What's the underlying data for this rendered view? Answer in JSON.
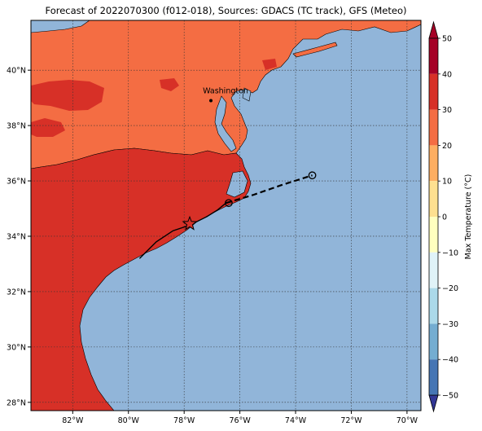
{
  "title": "Forecast of 2022070300 (f012-018), Sources: GDACS (TC track), GFS (Meteo)",
  "map": {
    "lon_range": [
      -83.5,
      -69.5
    ],
    "lat_range": [
      27.7,
      41.8
    ],
    "lon_ticks": [
      {
        "value": -82,
        "label": "82°W"
      },
      {
        "value": -80,
        "label": "80°W"
      },
      {
        "value": -78,
        "label": "78°W"
      },
      {
        "value": -76,
        "label": "76°W"
      },
      {
        "value": -74,
        "label": "74°W"
      },
      {
        "value": -72,
        "label": "72°W"
      },
      {
        "value": -70,
        "label": "70°W"
      }
    ],
    "lat_ticks": [
      {
        "value": 28,
        "label": "28°N"
      },
      {
        "value": 30,
        "label": "30°N"
      },
      {
        "value": 32,
        "label": "32°N"
      },
      {
        "value": 34,
        "label": "34°N"
      },
      {
        "value": 36,
        "label": "36°N"
      },
      {
        "value": 38,
        "label": "38°N"
      },
      {
        "value": 40,
        "label": "40°N"
      }
    ],
    "grid": true,
    "ocean_color": "#91b5d9",
    "land_warm_color": "#f46d43",
    "land_hot_color": "#d73027",
    "coast_color": "#000000",
    "city": {
      "name": "Washington",
      "lon": -77.04,
      "lat": 38.9
    }
  },
  "track": {
    "past": [
      [
        -79.6,
        33.2
      ],
      [
        -79.0,
        33.8
      ],
      [
        -78.4,
        34.2
      ],
      [
        -77.8,
        34.4
      ],
      [
        -77.2,
        34.7
      ],
      [
        -76.8,
        34.95
      ],
      [
        -76.5,
        35.2
      ]
    ],
    "forecast": [
      [
        -76.5,
        35.2
      ],
      [
        -75.5,
        35.5
      ],
      [
        -74.5,
        35.85
      ],
      [
        -73.4,
        36.2
      ]
    ],
    "current_position": [
      -77.8,
      34.45
    ],
    "forecast_points": [
      [
        -76.4,
        35.2
      ],
      [
        -73.4,
        36.2
      ]
    ]
  },
  "colorbar": {
    "label": "Max Temperature (°C)",
    "vmin": -50,
    "vmax": 50,
    "ticks": [
      50,
      40,
      30,
      20,
      10,
      0,
      -10,
      -20,
      -30,
      -40,
      -50
    ],
    "tick_labels": [
      "50",
      "40",
      "30",
      "20",
      "10",
      "0",
      "−10",
      "−20",
      "−30",
      "−40",
      "−50"
    ],
    "colors": [
      "#313695",
      "#4575b4",
      "#74add1",
      "#abd9e9",
      "#e0f3f8",
      "#ffffbf",
      "#fee090",
      "#fdae61",
      "#f46d43",
      "#d73027",
      "#a50026"
    ],
    "extend": "both"
  }
}
